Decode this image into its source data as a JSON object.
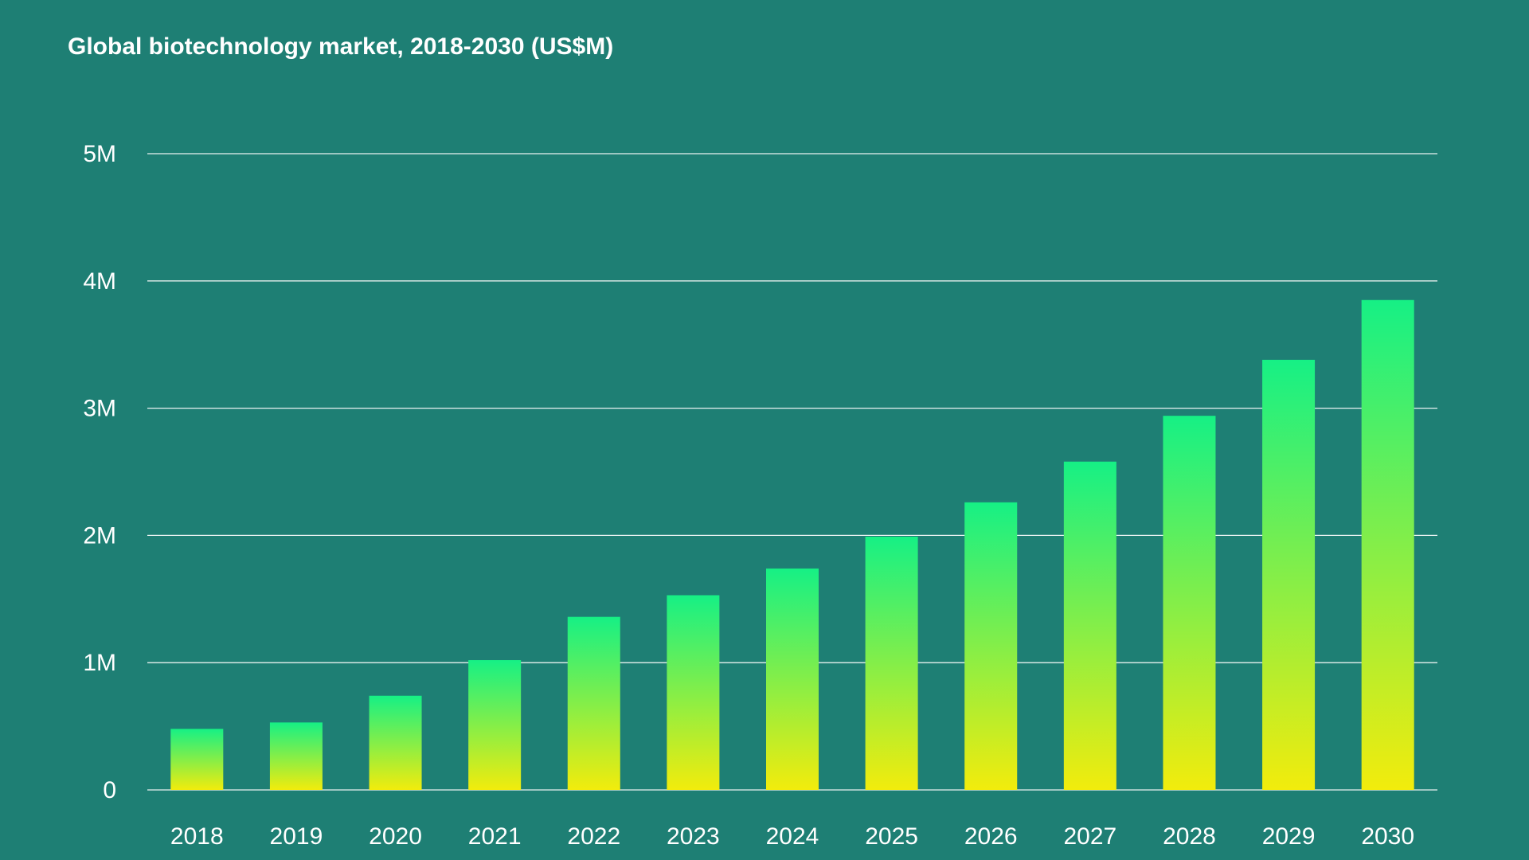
{
  "chart_data": {
    "type": "bar",
    "title": "Global biotechnology market, 2018-2030 (US$M)",
    "xlabel": "",
    "ylabel": "",
    "categories": [
      "2018",
      "2019",
      "2020",
      "2021",
      "2022",
      "2023",
      "2024",
      "2025",
      "2026",
      "2027",
      "2028",
      "2029",
      "2030"
    ],
    "series": [
      {
        "name": "Global biotechnology market (US$M)",
        "values": [
          480000,
          530000,
          740000,
          1020000,
          1360000,
          1530000,
          1740000,
          1990000,
          2260000,
          2580000,
          2940000,
          3380000,
          3850000
        ]
      }
    ],
    "ylim": [
      0,
      5000000
    ],
    "yticks": [
      0,
      1000000,
      2000000,
      3000000,
      4000000,
      5000000
    ],
    "ytick_labels": [
      "0",
      "1M",
      "2M",
      "3M",
      "4M",
      "5M"
    ],
    "grid": true,
    "legend": "none"
  },
  "colors": {
    "background": "#1e7f74",
    "bar_top": "#16f085",
    "bar_bottom": "#f2ec0c",
    "grid": "#ffffff",
    "text": "#ffffff"
  }
}
